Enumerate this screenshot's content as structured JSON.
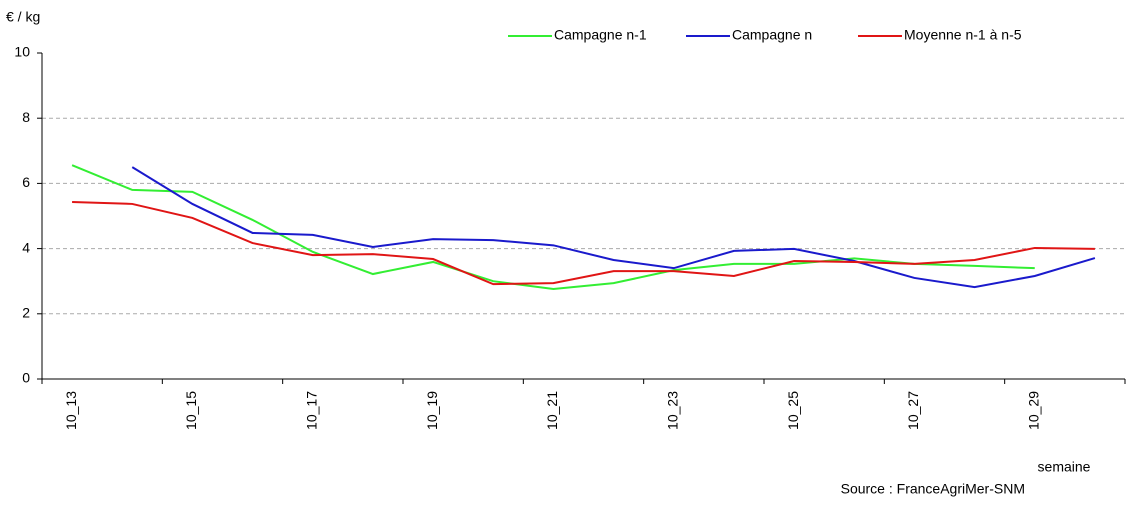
{
  "chart_data": {
    "type": "line",
    "y_label": "€ / kg",
    "x_label": "semaine",
    "source": "Source : FranceAgriMer-SNM",
    "categories": [
      "10_13",
      null,
      "10_15",
      null,
      "10_17",
      null,
      "10_19",
      null,
      "10_21",
      null,
      "10_23",
      null,
      "10_25",
      null,
      "10_27",
      null,
      "10_29",
      null
    ],
    "series": [
      {
        "name": "Campagne n-1",
        "color": "#33ee33",
        "values": [
          6.56,
          5.8,
          5.74,
          4.88,
          3.9,
          3.22,
          3.59,
          3.0,
          2.76,
          2.94,
          3.34,
          3.53,
          3.53,
          3.7,
          3.53,
          3.47,
          3.4,
          null
        ]
      },
      {
        "name": "Campagne n",
        "color": "#1a1acc",
        "values": [
          null,
          6.5,
          5.37,
          4.48,
          4.42,
          4.05,
          4.29,
          4.26,
          4.1,
          3.65,
          3.4,
          3.93,
          3.99,
          3.62,
          3.1,
          2.82,
          3.16,
          3.71
        ]
      },
      {
        "name": "Moyenne n-1 à n-5",
        "color": "#e01515",
        "values": [
          5.43,
          5.37,
          4.94,
          4.17,
          3.8,
          3.83,
          3.68,
          2.91,
          2.94,
          3.31,
          3.31,
          3.16,
          3.62,
          3.59,
          3.53,
          3.65,
          4.02,
          3.99
        ]
      }
    ],
    "ylim": [
      0,
      10
    ],
    "yticks": [
      0,
      2,
      4,
      6,
      8,
      10
    ],
    "grid": true,
    "legend": "top-right"
  }
}
